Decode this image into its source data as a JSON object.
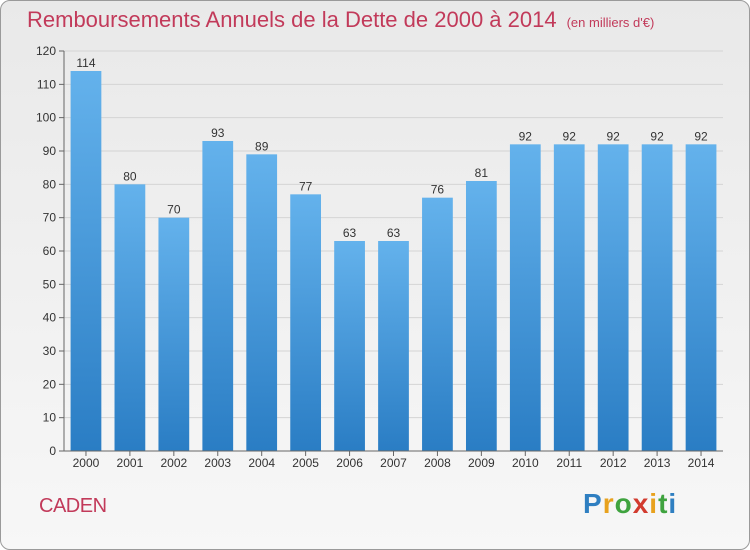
{
  "header": {
    "title": "Remboursements Annuels de la Dette de 2000 à 2014",
    "unit": "(en milliers d'€)"
  },
  "footer": {
    "town": "CADEN",
    "brand": "Proxiti"
  },
  "colors": {
    "title": "#c23a5a",
    "bar_top": "#64b2ec",
    "bar_bottom": "#2a7dc4",
    "grid": "#d4d4d4",
    "axis": "#666666"
  },
  "chart_data": {
    "type": "bar",
    "title": "Remboursements Annuels de la Dette de 2000 à 2014",
    "xlabel": "",
    "ylabel": "",
    "categories": [
      "2000",
      "2001",
      "2002",
      "2003",
      "2004",
      "2005",
      "2006",
      "2007",
      "2008",
      "2009",
      "2010",
      "2011",
      "2012",
      "2013",
      "2014"
    ],
    "values": [
      114,
      80,
      70,
      93,
      89,
      77,
      63,
      63,
      76,
      81,
      92,
      92,
      92,
      92,
      92
    ],
    "ylim": [
      0,
      120
    ],
    "yticks": [
      0,
      10,
      20,
      30,
      40,
      50,
      60,
      70,
      80,
      90,
      100,
      110,
      120
    ],
    "grid": true,
    "legend": "none"
  }
}
